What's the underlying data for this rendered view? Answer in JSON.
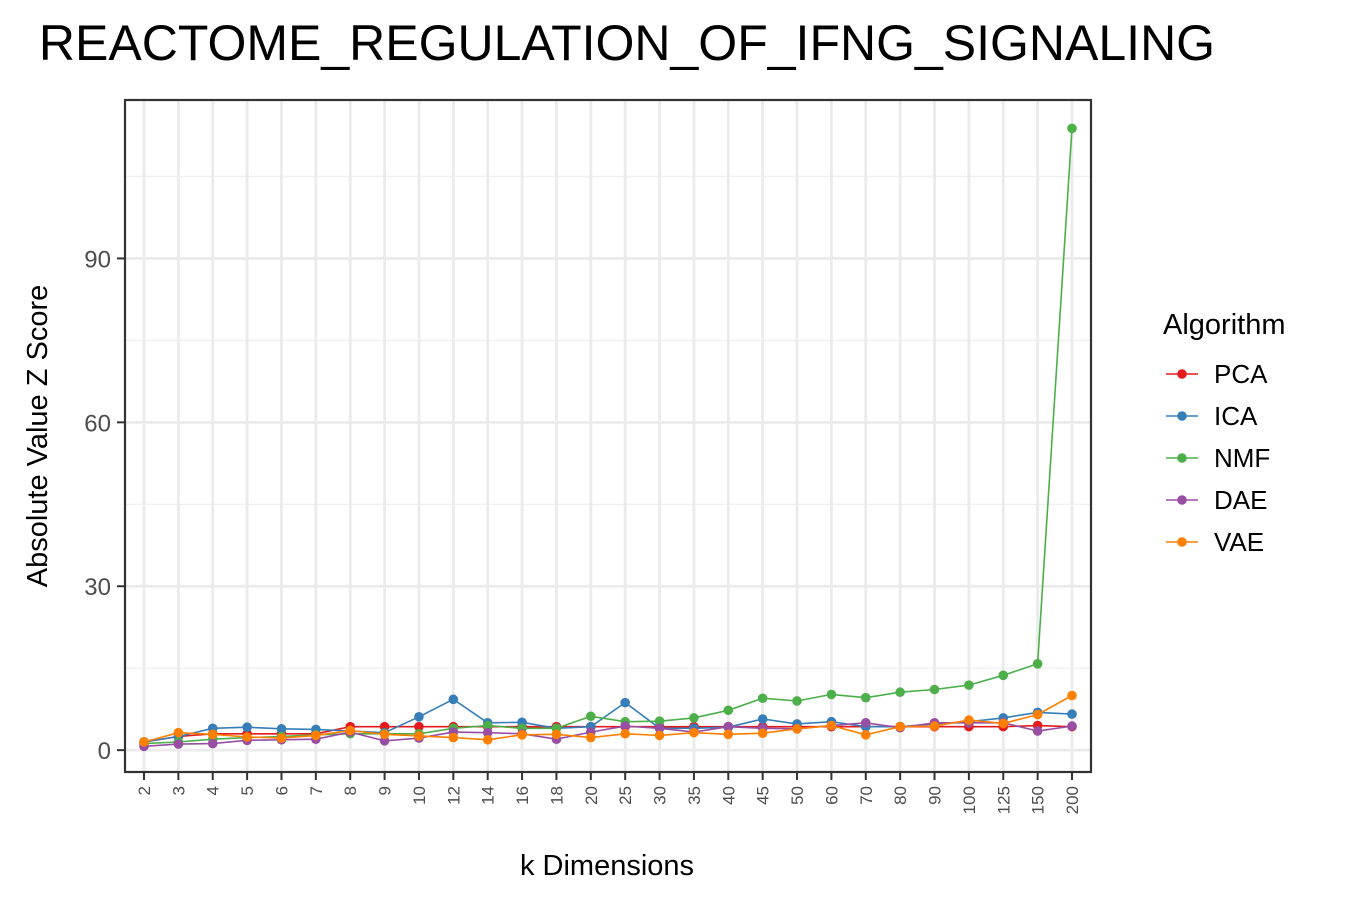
{
  "chart_data": {
    "type": "line",
    "title": "REACTOME_REGULATION_OF_IFNG_SIGNALING",
    "xlabel": "k Dimensions",
    "ylabel": "Absolute Value Z Score",
    "categories": [
      "2",
      "3",
      "4",
      "5",
      "6",
      "7",
      "8",
      "9",
      "10",
      "12",
      "14",
      "16",
      "18",
      "20",
      "25",
      "30",
      "35",
      "40",
      "45",
      "50",
      "60",
      "70",
      "80",
      "90",
      "100",
      "125",
      "150",
      "200"
    ],
    "ylim": [
      -4,
      119
    ],
    "yticks": [
      0,
      30,
      60,
      90
    ],
    "ytick_labels": [
      "0",
      "30",
      "60",
      "90"
    ],
    "grid": true,
    "legend": {
      "title": "Algorithm",
      "position": "right"
    },
    "series": [
      {
        "name": "PCA",
        "color": "#E41A1C",
        "values": [
          1.5,
          2.5,
          3.0,
          3.0,
          3.0,
          3.0,
          4.3,
          4.3,
          4.3,
          4.3,
          4.3,
          4.3,
          4.3,
          4.3,
          4.3,
          4.3,
          4.3,
          4.3,
          4.3,
          4.3,
          4.3,
          4.3,
          4.3,
          4.3,
          4.3,
          4.3,
          4.5,
          4.3
        ]
      },
      {
        "name": "ICA",
        "color": "#377EB8",
        "values": [
          1.5,
          2.5,
          4.0,
          4.2,
          3.9,
          3.8,
          3.5,
          3.2,
          6.1,
          9.3,
          5.0,
          5.1,
          4.0,
          4.3,
          8.7,
          4.0,
          4.0,
          4.2,
          5.7,
          4.8,
          5.2,
          4.3,
          4.3,
          4.8,
          5.2,
          5.9,
          6.9,
          6.6
        ]
      },
      {
        "name": "NMF",
        "color": "#4DAF4A",
        "values": [
          1.2,
          1.5,
          2.0,
          2.3,
          2.5,
          2.8,
          3.0,
          3.0,
          3.0,
          4.0,
          4.5,
          4.0,
          4.0,
          6.2,
          5.2,
          5.3,
          5.9,
          7.3,
          9.5,
          9.0,
          10.2,
          9.6,
          10.6,
          11.1,
          11.9,
          13.7,
          15.8,
          113.8
        ]
      },
      {
        "name": "DAE",
        "color": "#984EA3",
        "values": [
          0.7,
          1.1,
          1.2,
          1.8,
          1.9,
          2.0,
          3.3,
          1.7,
          2.2,
          3.3,
          3.2,
          3.0,
          2.0,
          3.3,
          4.4,
          4.0,
          3.3,
          4.3,
          4.0,
          3.9,
          4.5,
          5.0,
          4.1,
          5.0,
          5.0,
          5.0,
          3.5,
          4.4
        ]
      },
      {
        "name": "VAE",
        "color": "#FF7F00",
        "values": [
          1.5,
          3.2,
          2.9,
          2.4,
          2.2,
          2.7,
          3.6,
          2.9,
          2.6,
          2.3,
          1.9,
          2.8,
          2.9,
          2.3,
          3.0,
          2.7,
          3.2,
          2.9,
          3.1,
          3.9,
          4.5,
          2.8,
          4.3,
          4.4,
          5.5,
          4.9,
          6.5,
          10.0
        ]
      }
    ]
  }
}
